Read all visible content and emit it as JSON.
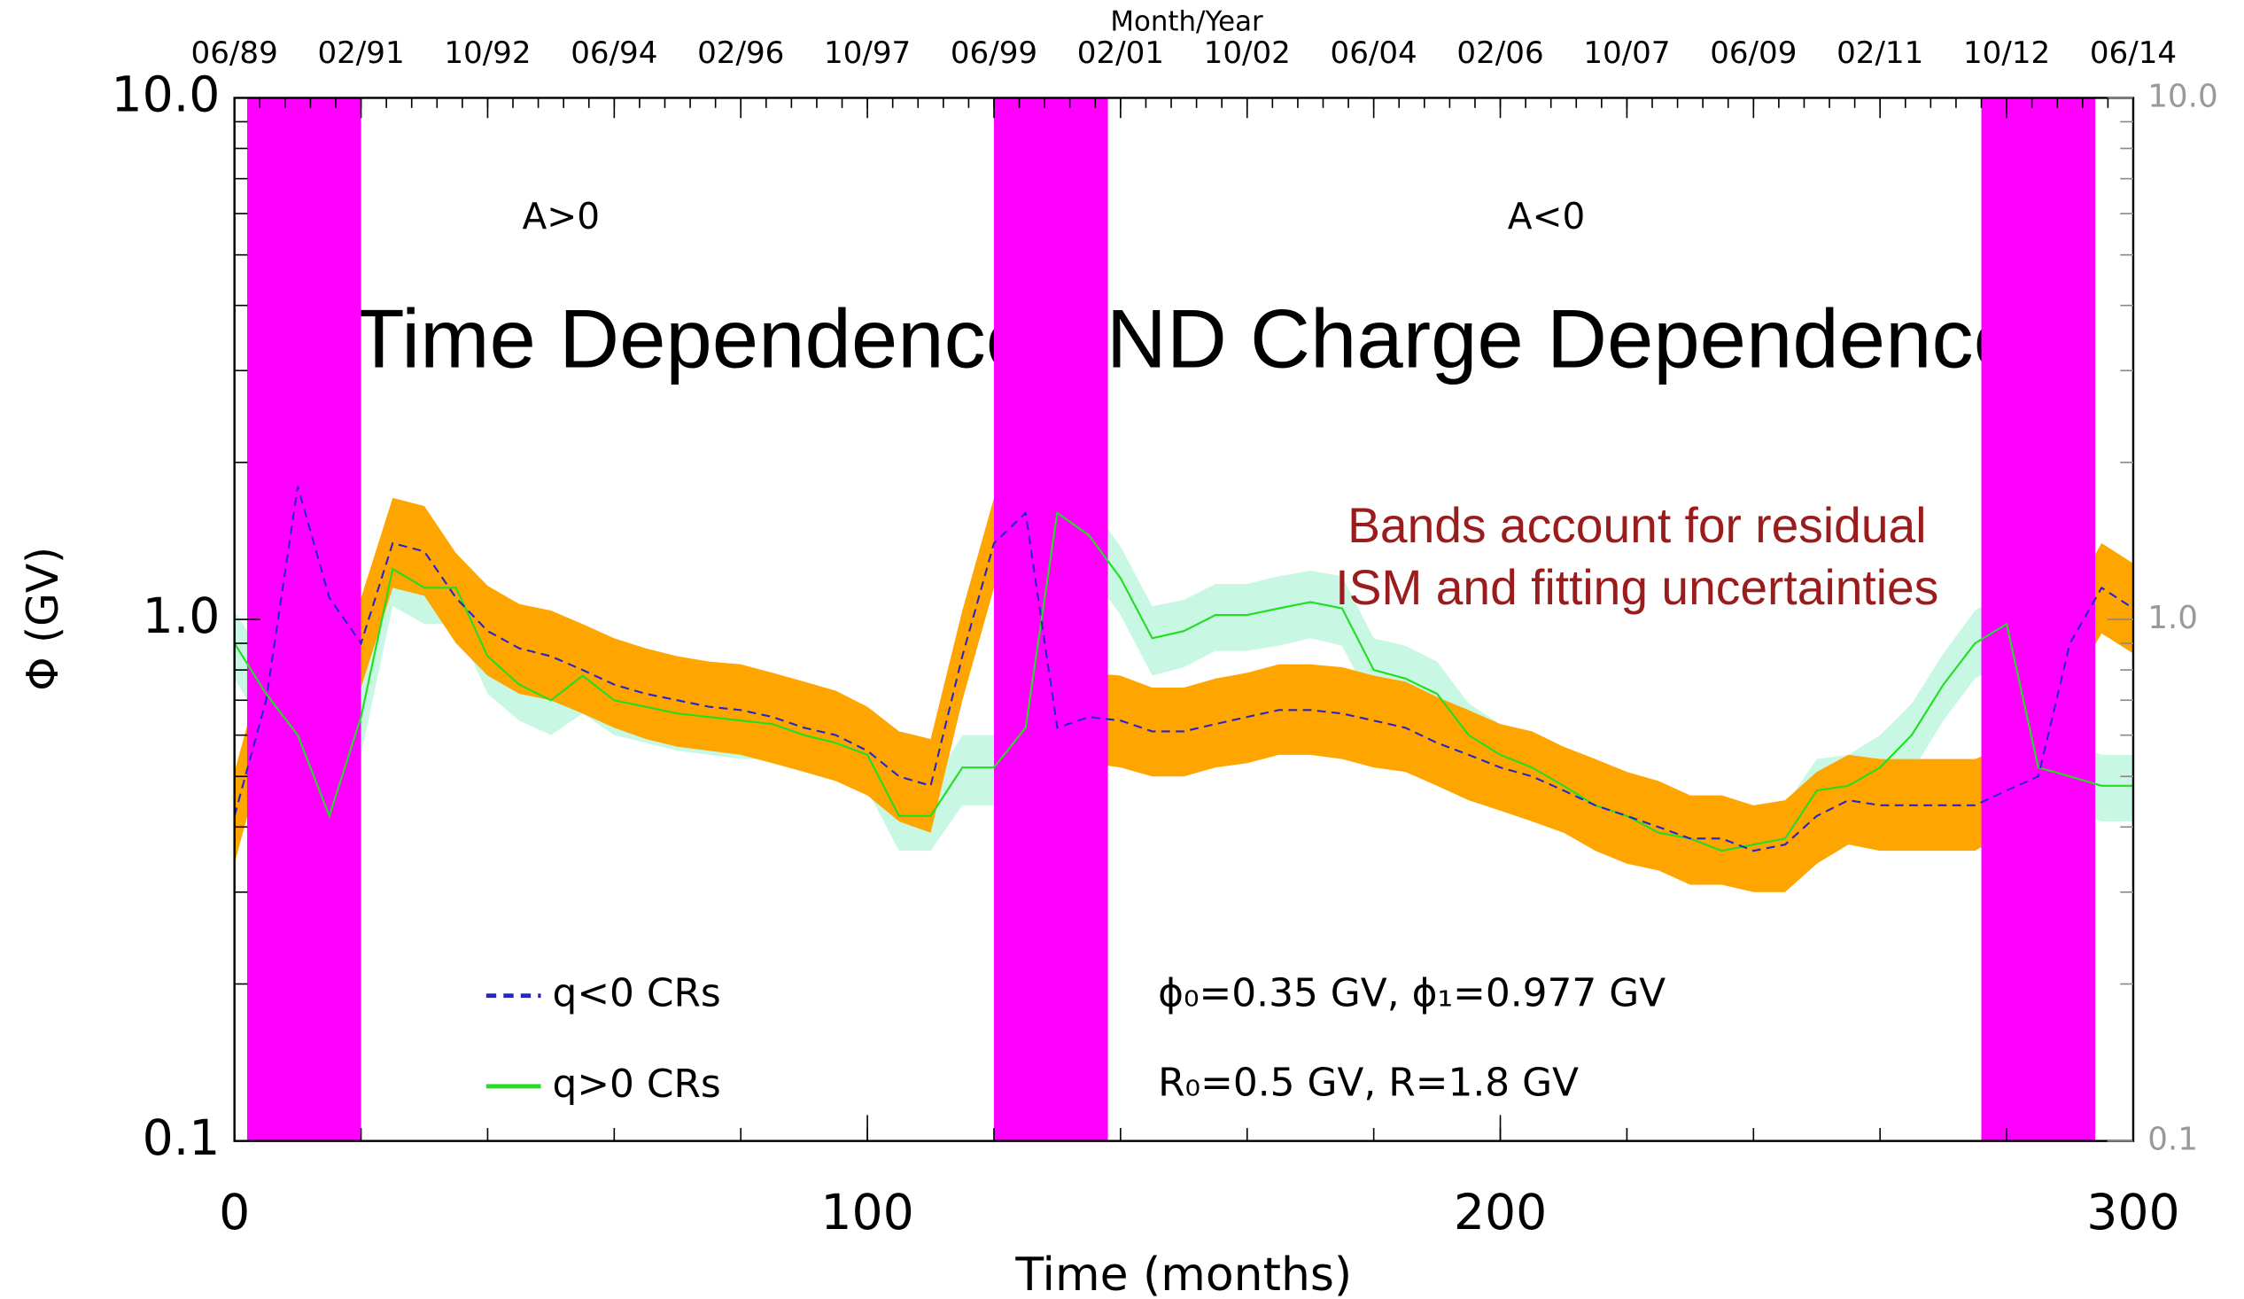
{
  "chart_data": {
    "type": "line",
    "title": "Time Dependence AND Charge Dependence",
    "x_label": "Time (months)",
    "y_label": "Φ (GV)",
    "x2_label": "Month/Year",
    "log_y": true,
    "xlim": [
      0,
      300
    ],
    "xticks": [
      0,
      100,
      200,
      300
    ],
    "ylim": [
      0.1,
      10
    ],
    "yticks": [
      0.1,
      {
        "value": 1,
        "label": "1.0"
      },
      {
        "value": 10,
        "label": "10.0"
      }
    ],
    "x2ticks": [
      {
        "value": 0,
        "label": "06/89"
      },
      {
        "value": 20,
        "label": "02/91"
      },
      {
        "value": 40,
        "label": "10/92"
      },
      {
        "value": 60,
        "label": "06/94"
      },
      {
        "value": 80,
        "label": "02/96"
      },
      {
        "value": 100,
        "label": "10/97"
      },
      {
        "value": 120,
        "label": "06/99"
      },
      {
        "value": 140,
        "label": "02/01"
      },
      {
        "value": 160,
        "label": "10/02"
      },
      {
        "value": 180,
        "label": "06/04"
      },
      {
        "value": 200,
        "label": "02/06"
      },
      {
        "value": 220,
        "label": "10/07"
      },
      {
        "value": 240,
        "label": "06/09"
      },
      {
        "value": 260,
        "label": "02/11"
      },
      {
        "value": 280,
        "label": "10/12"
      },
      {
        "value": 300,
        "label": "06/14"
      }
    ],
    "shaded_spans": [
      [
        2,
        20
      ],
      [
        120,
        138
      ],
      [
        276,
        294
      ]
    ],
    "shaded_color": "#ff00ff",
    "annotations": [
      "A>0",
      "A<0"
    ],
    "note": [
      "Bands account for residual",
      "ISM and fitting uncertainties"
    ],
    "note_color": "#9b1c1c",
    "parameters": [
      "ϕ₀=0.35 GV,   ϕ₁=0.977 GV",
      "R₀=0.5 GV,   R=1.8 GV"
    ],
    "x": [
      0,
      5,
      10,
      15,
      20,
      25,
      30,
      35,
      40,
      45,
      50,
      55,
      60,
      65,
      70,
      75,
      80,
      85,
      90,
      95,
      100,
      105,
      110,
      115,
      120,
      125,
      130,
      135,
      140,
      145,
      150,
      155,
      160,
      165,
      170,
      175,
      180,
      185,
      190,
      195,
      200,
      205,
      210,
      215,
      220,
      225,
      230,
      235,
      240,
      245,
      250,
      255,
      260,
      265,
      270,
      275,
      280,
      285,
      290,
      295,
      300
    ],
    "series": [
      {
        "name": "q<0 CRs",
        "color": "#2626c8",
        "dashed": true,
        "values": [
          0.42,
          0.7,
          1.8,
          1.1,
          0.9,
          1.4,
          1.35,
          1.1,
          0.95,
          0.88,
          0.85,
          0.8,
          0.75,
          0.72,
          0.7,
          0.68,
          0.67,
          0.65,
          0.62,
          0.6,
          0.56,
          0.5,
          0.48,
          0.85,
          1.4,
          1.6,
          0.62,
          0.65,
          0.64,
          0.61,
          0.61,
          0.63,
          0.65,
          0.67,
          0.67,
          0.66,
          0.64,
          0.62,
          0.58,
          0.55,
          0.52,
          0.5,
          0.47,
          0.44,
          0.42,
          0.4,
          0.38,
          0.38,
          0.36,
          0.37,
          0.42,
          0.45,
          0.44,
          0.44,
          0.44,
          0.44,
          0.47,
          0.5,
          0.9,
          1.15,
          1.05
        ],
        "band_color": "#ffa500",
        "band_lower": [
          0.34,
          0.57,
          1.48,
          0.9,
          0.74,
          1.15,
          1.11,
          0.9,
          0.78,
          0.72,
          0.7,
          0.66,
          0.62,
          0.59,
          0.57,
          0.56,
          0.55,
          0.53,
          0.51,
          0.49,
          0.46,
          0.41,
          0.39,
          0.7,
          1.15,
          1.31,
          0.51,
          0.53,
          0.52,
          0.5,
          0.5,
          0.52,
          0.53,
          0.55,
          0.55,
          0.54,
          0.52,
          0.51,
          0.48,
          0.45,
          0.43,
          0.41,
          0.39,
          0.36,
          0.34,
          0.33,
          0.31,
          0.31,
          0.3,
          0.3,
          0.34,
          0.37,
          0.36,
          0.36,
          0.36,
          0.36,
          0.39,
          0.41,
          0.74,
          0.94,
          0.86
        ],
        "band_upper": [
          0.51,
          0.85,
          2.2,
          1.34,
          1.1,
          1.71,
          1.65,
          1.34,
          1.16,
          1.07,
          1.04,
          0.98,
          0.92,
          0.88,
          0.85,
          0.83,
          0.82,
          0.79,
          0.76,
          0.73,
          0.68,
          0.61,
          0.59,
          1.04,
          1.71,
          1.95,
          0.76,
          0.79,
          0.78,
          0.74,
          0.74,
          0.77,
          0.79,
          0.82,
          0.82,
          0.81,
          0.78,
          0.76,
          0.71,
          0.67,
          0.63,
          0.61,
          0.57,
          0.54,
          0.51,
          0.49,
          0.46,
          0.46,
          0.44,
          0.45,
          0.51,
          0.55,
          0.54,
          0.54,
          0.54,
          0.54,
          0.57,
          0.61,
          1.1,
          1.4,
          1.28
        ]
      },
      {
        "name": "q>0 CRs",
        "color": "#22dd22",
        "dashed": false,
        "values": [
          0.9,
          0.72,
          0.6,
          0.42,
          0.65,
          1.25,
          1.15,
          1.15,
          0.85,
          0.75,
          0.7,
          0.78,
          0.7,
          0.68,
          0.66,
          0.65,
          0.64,
          0.63,
          0.6,
          0.58,
          0.55,
          0.42,
          0.42,
          0.52,
          0.52,
          0.62,
          1.6,
          1.45,
          1.2,
          0.92,
          0.95,
          1.02,
          1.02,
          1.05,
          1.08,
          1.05,
          0.8,
          0.77,
          0.72,
          0.6,
          0.55,
          0.52,
          0.48,
          0.44,
          0.42,
          0.39,
          0.38,
          0.36,
          0.37,
          0.38,
          0.47,
          0.48,
          0.52,
          0.6,
          0.75,
          0.9,
          0.98,
          0.52,
          0.5,
          0.48,
          0.48
        ],
        "band_color": "#c8f8e4",
        "band_lower": [
          0.77,
          0.61,
          0.51,
          0.36,
          0.55,
          1.06,
          0.98,
          0.98,
          0.72,
          0.64,
          0.6,
          0.66,
          0.6,
          0.58,
          0.56,
          0.55,
          0.54,
          0.54,
          0.51,
          0.49,
          0.47,
          0.36,
          0.36,
          0.44,
          0.44,
          0.53,
          1.36,
          1.23,
          1.02,
          0.78,
          0.81,
          0.87,
          0.87,
          0.89,
          0.92,
          0.89,
          0.68,
          0.65,
          0.61,
          0.51,
          0.47,
          0.44,
          0.41,
          0.37,
          0.36,
          0.33,
          0.32,
          0.31,
          0.31,
          0.32,
          0.4,
          0.41,
          0.44,
          0.51,
          0.64,
          0.77,
          0.83,
          0.44,
          0.43,
          0.41,
          0.41
        ],
        "band_upper": [
          1.04,
          0.83,
          0.69,
          0.48,
          0.75,
          1.44,
          1.32,
          1.32,
          0.98,
          0.86,
          0.81,
          0.9,
          0.81,
          0.78,
          0.76,
          0.75,
          0.74,
          0.72,
          0.69,
          0.67,
          0.63,
          0.48,
          0.48,
          0.6,
          0.6,
          0.71,
          1.84,
          1.67,
          1.38,
          1.06,
          1.09,
          1.17,
          1.17,
          1.21,
          1.24,
          1.21,
          0.92,
          0.89,
          0.83,
          0.69,
          0.63,
          0.6,
          0.55,
          0.51,
          0.48,
          0.45,
          0.44,
          0.41,
          0.43,
          0.44,
          0.54,
          0.55,
          0.6,
          0.69,
          0.86,
          1.04,
          1.13,
          0.6,
          0.58,
          0.55,
          0.55
        ]
      }
    ]
  }
}
